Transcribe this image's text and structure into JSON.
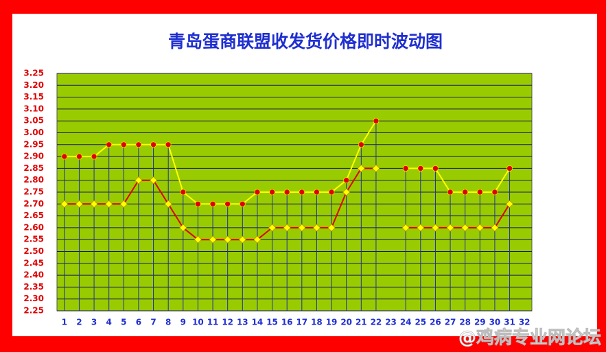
{
  "chart_data": {
    "type": "line",
    "title": "青岛蛋商联盟收发货价格即时波动图",
    "watermark": "@鸡病专业网论坛",
    "categories": [
      "1",
      "2",
      "3",
      "4",
      "5",
      "6",
      "7",
      "8",
      "9",
      "10",
      "11",
      "12",
      "13",
      "14",
      "15",
      "16",
      "17",
      "18",
      "19",
      "20",
      "21",
      "22",
      "23",
      "24",
      "25",
      "26",
      "27",
      "28",
      "29",
      "30",
      "31",
      "32"
    ],
    "series": [
      {
        "color": "#ffff00",
        "marker": "circle",
        "marker_color": "#e00000",
        "values": [
          2.9,
          2.9,
          2.9,
          2.95,
          2.95,
          2.95,
          2.95,
          2.95,
          2.75,
          2.7,
          2.7,
          2.7,
          2.7,
          2.75,
          2.75,
          2.75,
          2.75,
          2.75,
          2.75,
          2.8,
          2.95,
          3.05,
          null,
          2.85,
          2.85,
          2.85,
          2.75,
          2.75,
          2.75,
          2.75,
          2.85,
          null
        ]
      },
      {
        "color": "#e00000",
        "marker": "diamond",
        "marker_color": "#ffff00",
        "values": [
          2.7,
          2.7,
          2.7,
          2.7,
          2.7,
          2.8,
          2.8,
          2.7,
          2.6,
          2.55,
          2.55,
          2.55,
          2.55,
          2.55,
          2.6,
          2.6,
          2.6,
          2.6,
          2.6,
          2.75,
          2.85,
          2.85,
          null,
          2.6,
          2.6,
          2.6,
          2.6,
          2.6,
          2.6,
          2.6,
          2.7,
          null
        ]
      }
    ],
    "drop_lines": true,
    "ylim": [
      2.25,
      3.25
    ],
    "yticks": [
      2.25,
      {
        "value": 2.3,
        "label": "2.30"
      },
      2.35,
      {
        "value": 2.4,
        "label": "2.40"
      },
      2.45,
      {
        "value": 2.5,
        "label": "2.50"
      },
      2.55,
      {
        "value": 2.6,
        "label": "2.60"
      },
      2.65,
      {
        "value": 2.7,
        "label": "2.70"
      },
      2.75,
      {
        "value": 2.8,
        "label": "2.80"
      },
      2.85,
      {
        "value": 2.9,
        "label": "2.90"
      },
      2.95,
      {
        "value": 3.0,
        "label": "3.00"
      },
      3.05,
      {
        "value": 3.1,
        "label": "3.10"
      },
      3.15,
      {
        "value": 3.2,
        "label": "3.20"
      },
      3.25
    ],
    "grid": true
  }
}
